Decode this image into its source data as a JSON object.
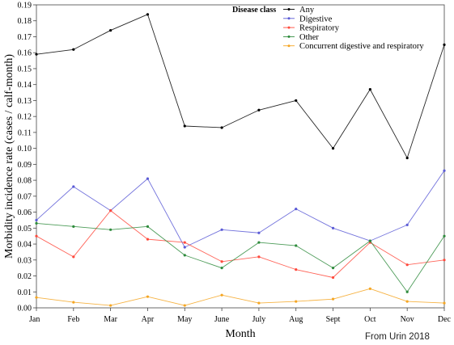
{
  "credit": "From Urin 2018",
  "chart_data": {
    "type": "line",
    "title": "",
    "xlabel": "Month",
    "ylabel": "Morbidity incidence rate (cases / calf-month)",
    "categories": [
      "Jan",
      "Feb",
      "Mar",
      "Apr",
      "May",
      "June",
      "July",
      "Aug",
      "Sept",
      "Oct",
      "Nov",
      "Dec"
    ],
    "ylim": [
      0,
      0.19
    ],
    "yticks": [
      "0.00",
      "0.01",
      "0.02",
      "0.03",
      "0.04",
      "0.05",
      "0.06",
      "0.07",
      "0.08",
      "0.09",
      "0.10",
      "0.11",
      "0.12",
      "0.13",
      "0.14",
      "0.15",
      "0.16",
      "0.17",
      "0.18",
      "0.19"
    ],
    "legend": {
      "title": "Disease class",
      "position": "top-right"
    },
    "series": [
      {
        "name": "Any",
        "color": "#000000",
        "values": [
          0.159,
          0.162,
          0.174,
          0.184,
          0.114,
          0.113,
          0.124,
          0.13,
          0.1,
          0.137,
          0.094,
          0.165
        ]
      },
      {
        "name": "Digestive",
        "color": "#5b5bd6",
        "values": [
          0.055,
          0.076,
          0.061,
          0.081,
          0.038,
          0.049,
          0.047,
          0.062,
          0.05,
          0.042,
          0.052,
          0.086
        ]
      },
      {
        "name": "Respiratory",
        "color": "#ff4a3d",
        "values": [
          0.045,
          0.032,
          0.061,
          0.043,
          0.041,
          0.029,
          0.032,
          0.024,
          0.019,
          0.041,
          0.027,
          0.03
        ]
      },
      {
        "name": "Other",
        "color": "#2e8b3c",
        "values": [
          0.053,
          0.051,
          0.049,
          0.051,
          0.033,
          0.025,
          0.041,
          0.039,
          0.025,
          0.042,
          0.01,
          0.045
        ]
      },
      {
        "name": "Concurrent digestive and respiratory",
        "color": "#f5a623",
        "values": [
          0.0065,
          0.0035,
          0.0015,
          0.007,
          0.0015,
          0.008,
          0.003,
          0.004,
          0.0055,
          0.012,
          0.004,
          0.003
        ]
      }
    ]
  }
}
